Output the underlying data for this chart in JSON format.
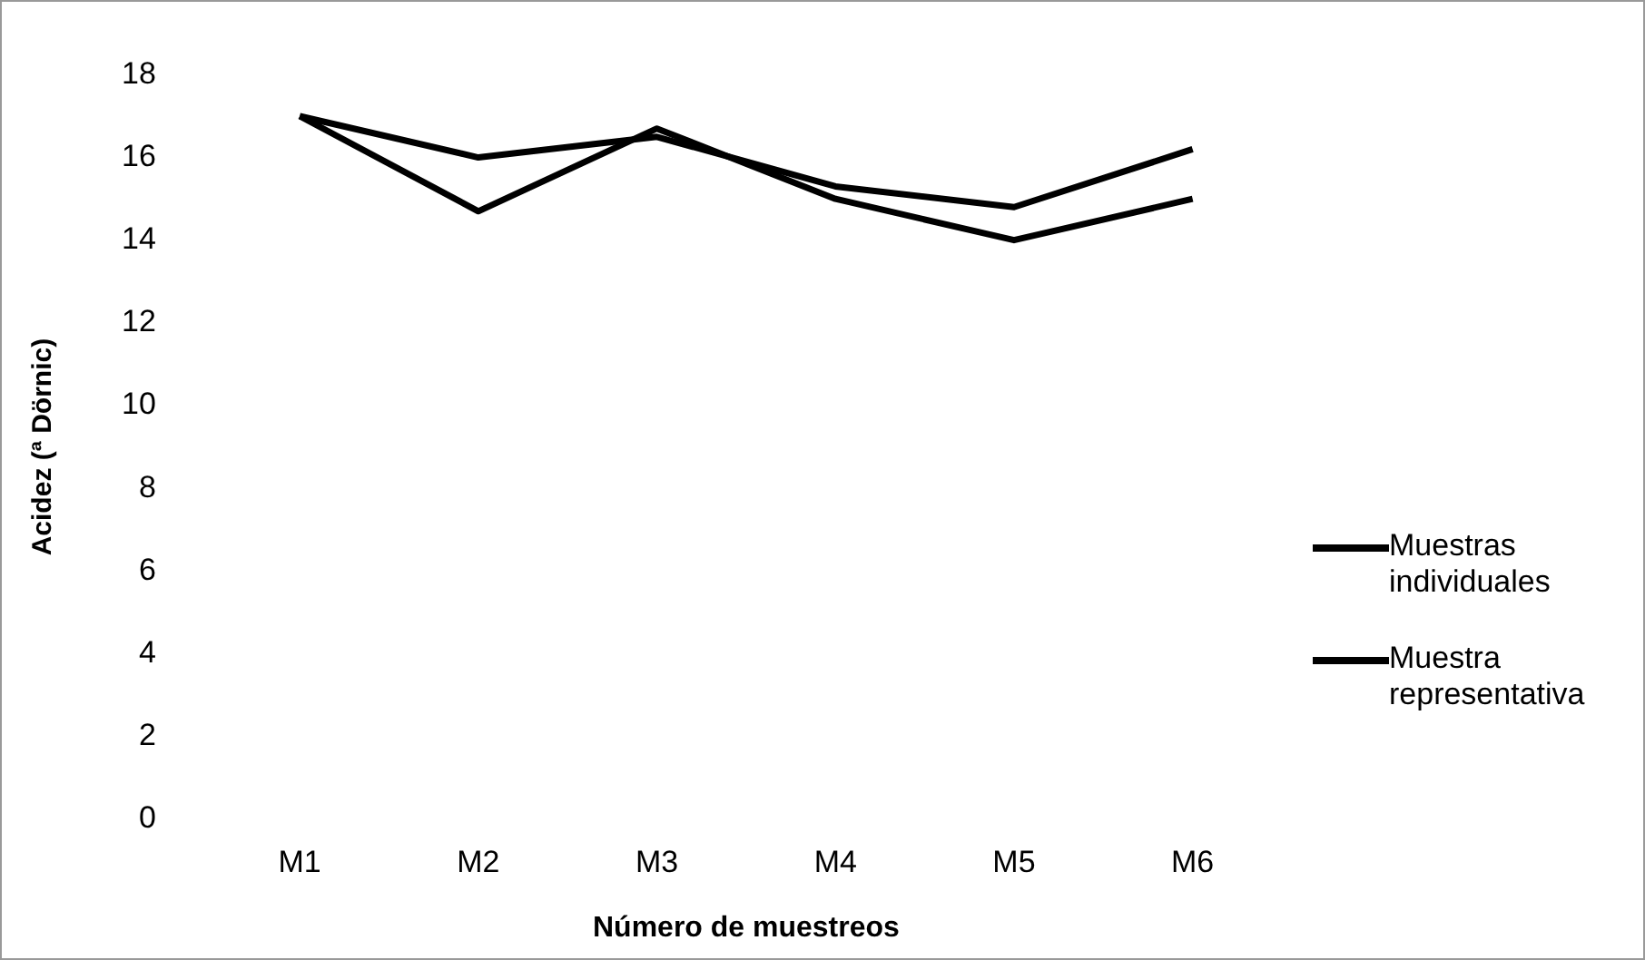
{
  "chart_data": {
    "type": "line",
    "xlabel": "Número de muestreos",
    "ylabel": "Acidez (ª Dörnic)",
    "categories": [
      "M1",
      "M2",
      "M3",
      "M4",
      "M5",
      "M6"
    ],
    "series": [
      {
        "name": "Muestras individuales",
        "color": "#000000",
        "values": [
          17,
          16,
          16.5,
          15.3,
          14.8,
          16.2
        ]
      },
      {
        "name": "Muestra representativa",
        "color": "#000000",
        "values": [
          17,
          14.7,
          16.7,
          15,
          14,
          15
        ]
      }
    ],
    "ylim": [
      0,
      18
    ],
    "yticks": [
      0,
      2,
      4,
      6,
      8,
      10,
      12,
      14,
      16,
      18
    ],
    "grid": false,
    "legend": "right",
    "marker": "none",
    "line_style": "solid"
  }
}
